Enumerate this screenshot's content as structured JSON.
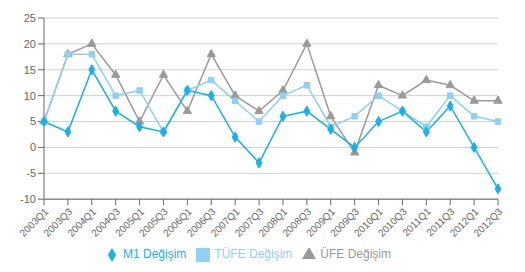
{
  "chart_data": {
    "type": "line",
    "categories": [
      "2003Q1",
      "2003Q3",
      "2004Q1",
      "2004Q3",
      "2005Q1",
      "2005Q3",
      "2006Q1",
      "2006Q3",
      "2007Q1",
      "2007Q3",
      "2008Q1",
      "2008Q3",
      "2009Q1",
      "2009Q3",
      "2010Q1",
      "2010Q3",
      "2011Q1",
      "2011Q3",
      "2012Q1",
      "2012Q3"
    ],
    "series": [
      {
        "name": "ÜFE Değişim",
        "color": "#9a9a9a",
        "marker": "triangle",
        "values": [
          5,
          18,
          20,
          14,
          5,
          14,
          7,
          18,
          10,
          7,
          11,
          20,
          6,
          -1,
          12,
          10,
          13,
          12,
          9,
          9
        ]
      },
      {
        "name": "TÜFE Değişim",
        "color": "#90d0f0",
        "marker": "square",
        "values": [
          5,
          18,
          18,
          10,
          11,
          3,
          11,
          13,
          9,
          5,
          10,
          12,
          4,
          6,
          10,
          7,
          4,
          10,
          6,
          5
        ]
      },
      {
        "name": "M1 Değişim",
        "color": "#1ab0e8",
        "marker": "diamond",
        "values": [
          5,
          3,
          15,
          7,
          4,
          3,
          11,
          10,
          2,
          -3,
          6,
          7,
          3.5,
          0,
          5,
          7,
          3,
          8,
          0,
          -8
        ]
      }
    ],
    "ylim": [
      -10,
      25
    ],
    "yticks": [
      -10,
      -5,
      0,
      5,
      10,
      15,
      20,
      25
    ],
    "grid": true,
    "legend": "bottom"
  }
}
